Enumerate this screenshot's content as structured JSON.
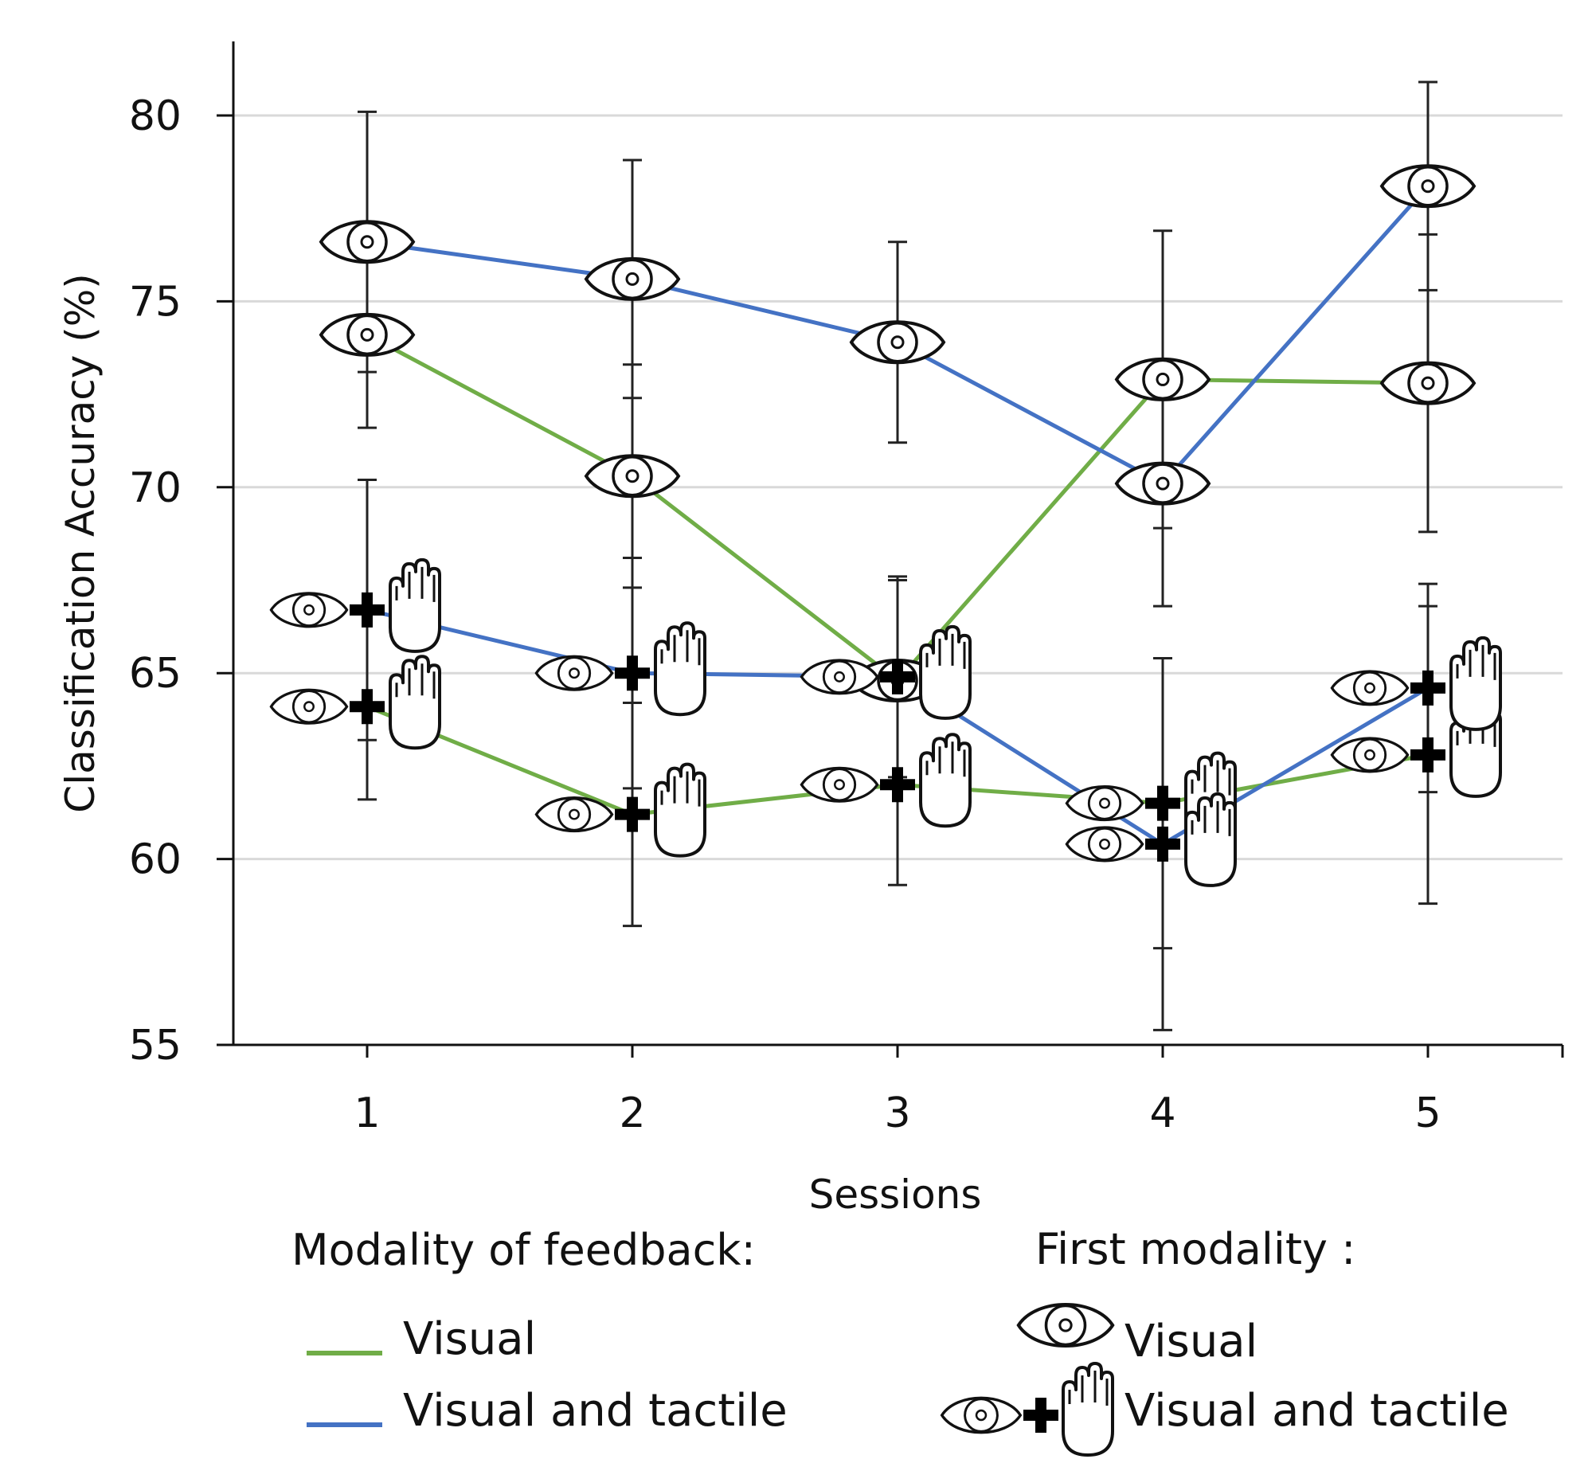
{
  "chart_data": {
    "type": "line",
    "title": "",
    "xlabel": "Sessions",
    "ylabel": "Classification Accuracy (%)",
    "categories": [
      "1",
      "2",
      "3",
      "4",
      "5"
    ],
    "ylim": [
      55,
      82
    ],
    "yticks": [
      55,
      60,
      65,
      70,
      75,
      80
    ],
    "grid": true,
    "series": [
      {
        "name": "Visual feedback / First modality: Visual",
        "feedback": "Visual",
        "first_modality": "Visual",
        "color": "#70ad47",
        "marker": "eye",
        "values": [
          74.1,
          70.3,
          64.8,
          72.9,
          72.8
        ],
        "error": [
          2.5,
          3.0,
          2.7,
          4.0,
          4.0
        ]
      },
      {
        "name": "Visual and tactile feedback / First modality: Visual",
        "feedback": "Visual and tactile",
        "first_modality": "Visual",
        "color": "#4472c4",
        "marker": "eye",
        "values": [
          76.6,
          75.6,
          73.9,
          70.1,
          78.1
        ],
        "error": [
          3.5,
          3.2,
          2.7,
          3.3,
          2.8
        ]
      },
      {
        "name": "Visual feedback / First modality: Visual and tactile",
        "feedback": "Visual",
        "first_modality": "Visual and tactile",
        "color": "#70ad47",
        "marker": "eye-plus-hand",
        "values": [
          64.1,
          61.2,
          62.0,
          61.5,
          62.8
        ],
        "error": [
          2.5,
          3.0,
          2.7,
          3.9,
          4.0
        ]
      },
      {
        "name": "Visual and tactile feedback / First modality: Visual and tactile",
        "feedback": "Visual and tactile",
        "first_modality": "Visual and tactile",
        "color": "#4472c4",
        "marker": "eye-plus-hand",
        "values": [
          66.7,
          65.0,
          64.9,
          60.4,
          64.6
        ],
        "error": [
          3.5,
          3.1,
          2.7,
          5.0,
          2.8
        ]
      }
    ]
  },
  "legend": {
    "feedback_heading": "Modality of feedback:",
    "feedback_items": [
      {
        "label": "Visual",
        "color": "#70ad47"
      },
      {
        "label": "Visual and tactile",
        "color": "#4472c4"
      }
    ],
    "modality_heading": "First modality :",
    "modality_items": [
      {
        "label": "Visual",
        "icon": "eye-icon"
      },
      {
        "label": "Visual and tactile",
        "icon": "eye-plus-hand-icon"
      }
    ]
  }
}
